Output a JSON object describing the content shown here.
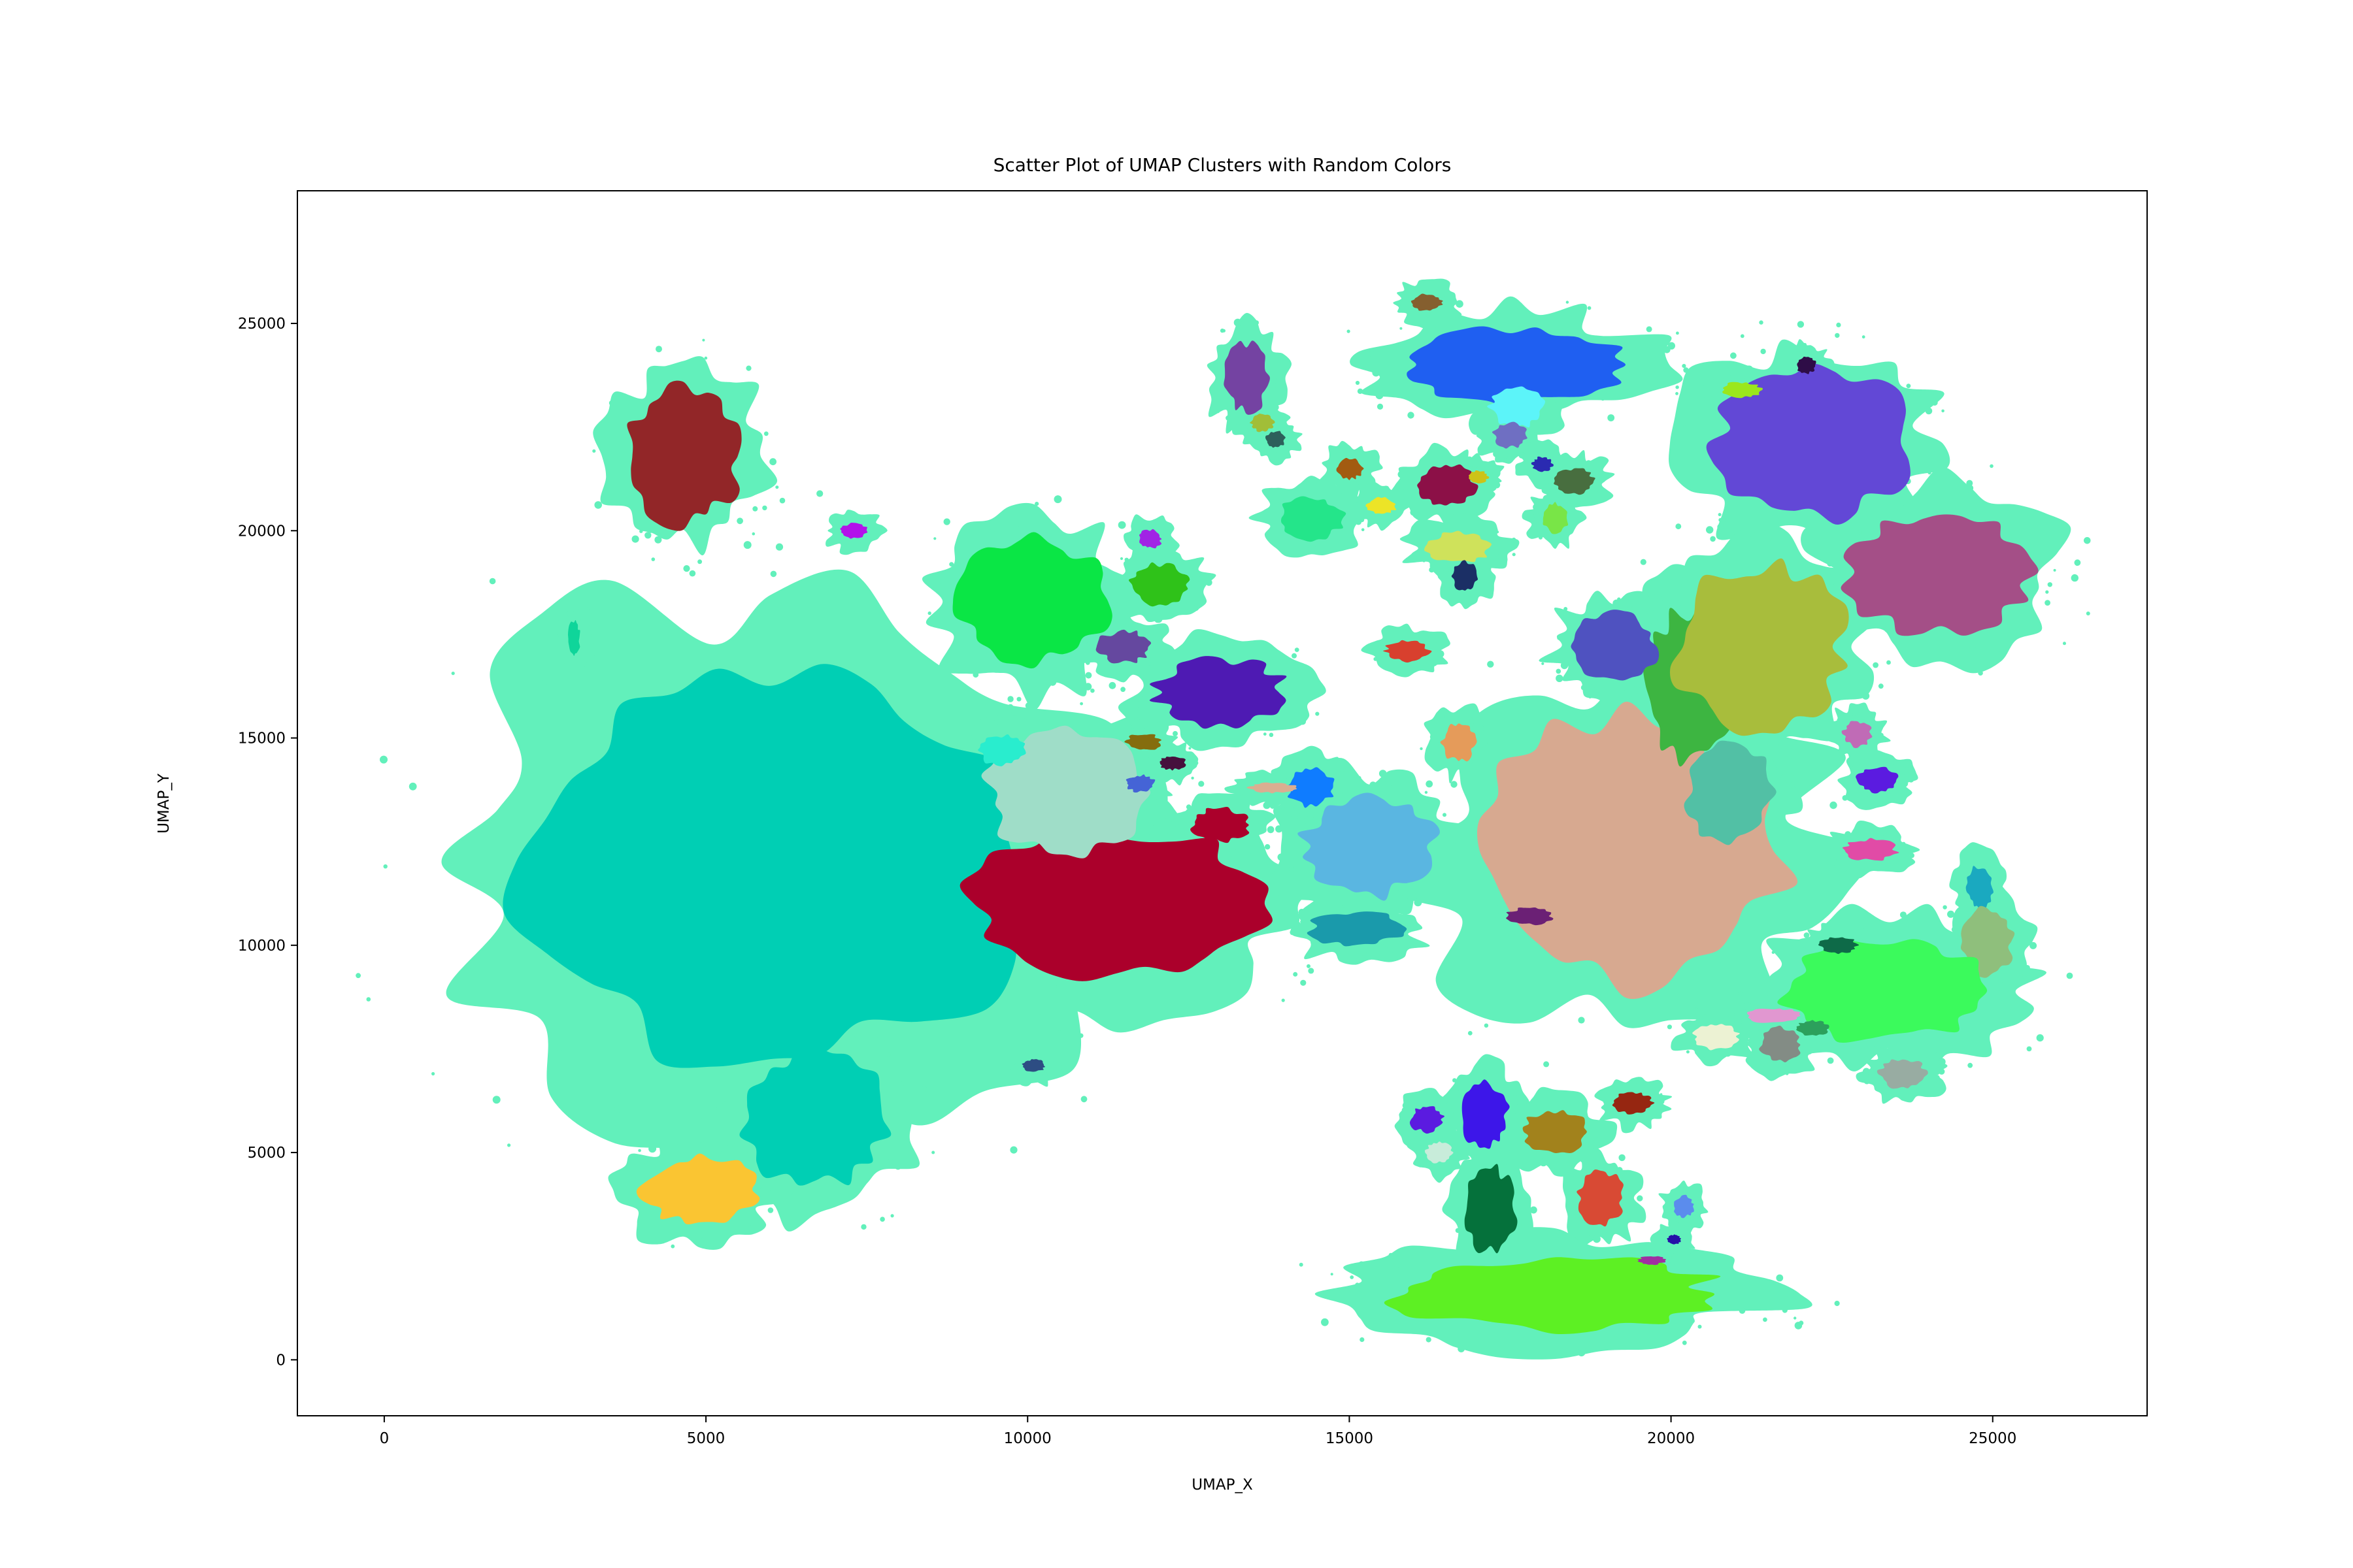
{
  "chart_data": {
    "type": "scatter",
    "title": "Scatter Plot of UMAP Clusters with Random Colors",
    "xlabel": "UMAP_X",
    "ylabel": "UMAP_Y",
    "xlim": [
      -1350,
      27400
    ],
    "ylim": [
      -1350,
      28200
    ],
    "xticks": [
      0,
      5000,
      10000,
      15000,
      20000,
      25000
    ],
    "yticks": [
      0,
      5000,
      10000,
      15000,
      20000,
      25000
    ],
    "grid": false,
    "legend": "none",
    "background_points_color": "#62f0bb",
    "clusters": [
      {
        "color": "#00cfb4",
        "center": [
          6000,
          12000
        ],
        "rx": 3800,
        "ry": 5000
      },
      {
        "color": "#00cfb4",
        "center": [
          6700,
          5800
        ],
        "rx": 1100,
        "ry": 1600
      },
      {
        "color": "#922628",
        "center": [
          4650,
          21800
        ],
        "rx": 850,
        "ry": 1600
      },
      {
        "color": "#fac532",
        "center": [
          4900,
          4100
        ],
        "rx": 850,
        "ry": 800
      },
      {
        "color": "#ab002b",
        "center": [
          11400,
          11000
        ],
        "rx": 2200,
        "ry": 1800
      },
      {
        "color": "#9fddc8",
        "center": [
          10600,
          13700
        ],
        "rx": 1200,
        "ry": 1500
      },
      {
        "color": "#0ae645",
        "center": [
          10100,
          18300
        ],
        "rx": 1100,
        "ry": 1500
      },
      {
        "color": "#2fc219",
        "center": [
          12050,
          18700
        ],
        "rx": 450,
        "ry": 480
      },
      {
        "color": "#65489f",
        "center": [
          11500,
          17200
        ],
        "rx": 400,
        "ry": 380
      },
      {
        "color": "#a123e5",
        "center": [
          11900,
          19800
        ],
        "rx": 180,
        "ry": 220
      },
      {
        "color": "#4e1ab3",
        "center": [
          13000,
          16100
        ],
        "rx": 1000,
        "ry": 800
      },
      {
        "color": "#856d0e",
        "center": [
          11800,
          14900
        ],
        "rx": 260,
        "ry": 200
      },
      {
        "color": "#4564d6",
        "center": [
          11750,
          13900
        ],
        "rx": 220,
        "ry": 200
      },
      {
        "color": "#46103d",
        "center": [
          12250,
          14400
        ],
        "rx": 200,
        "ry": 160
      },
      {
        "color": "#ab002b",
        "center": [
          13000,
          12900
        ],
        "rx": 450,
        "ry": 400
      },
      {
        "color": "#5ab6e1",
        "center": [
          15300,
          12400
        ],
        "rx": 1000,
        "ry": 1200
      },
      {
        "color": "#0f7cff",
        "center": [
          14400,
          13800
        ],
        "rx": 350,
        "ry": 450
      },
      {
        "color": "#1a9aab",
        "center": [
          15100,
          10400
        ],
        "rx": 700,
        "ry": 400
      },
      {
        "color": "#daae91",
        "center": [
          13800,
          13800
        ],
        "rx": 350,
        "ry": 120
      },
      {
        "color": "#29edce",
        "center": [
          9600,
          14700
        ],
        "rx": 350,
        "ry": 350
      },
      {
        "color": "#d8402e",
        "center": [
          15900,
          17100
        ],
        "rx": 330,
        "ry": 250
      },
      {
        "color": "#e59b5a",
        "center": [
          16700,
          14900
        ],
        "rx": 250,
        "ry": 450
      },
      {
        "color": "#d7a990",
        "center": [
          19300,
          12300
        ],
        "rx": 2400,
        "ry": 3200
      },
      {
        "color": "#52c0a5",
        "center": [
          20900,
          13700
        ],
        "rx": 650,
        "ry": 1200
      },
      {
        "color": "#3db541",
        "center": [
          20300,
          16300
        ],
        "rx": 650,
        "ry": 1800
      },
      {
        "color": "#a8bd3c",
        "center": [
          21400,
          17200
        ],
        "rx": 1300,
        "ry": 2000
      },
      {
        "color": "#4f52c0",
        "center": [
          19100,
          17200
        ],
        "rx": 650,
        "ry": 800
      },
      {
        "color": "#6248d6",
        "center": [
          22200,
          22100
        ],
        "rx": 1500,
        "ry": 1800
      },
      {
        "color": "#a44f87",
        "center": [
          24200,
          19000
        ],
        "rx": 1400,
        "ry": 1500
      },
      {
        "color": "#9be71c",
        "center": [
          21100,
          23400
        ],
        "rx": 300,
        "ry": 180
      },
      {
        "color": "#2e0d47",
        "center": [
          22100,
          24000
        ],
        "rx": 150,
        "ry": 200
      },
      {
        "color": "#1f5ff1",
        "center": [
          17500,
          24000
        ],
        "rx": 1700,
        "ry": 900
      },
      {
        "color": "#855f2f",
        "center": [
          16200,
          25500
        ],
        "rx": 250,
        "ry": 200
      },
      {
        "color": "#5cf4f9",
        "center": [
          17600,
          23000
        ],
        "rx": 400,
        "ry": 500
      },
      {
        "color": "#8c1047",
        "center": [
          16500,
          21100
        ],
        "rx": 450,
        "ry": 500
      },
      {
        "color": "#24e58a",
        "center": [
          14400,
          20300
        ],
        "rx": 500,
        "ry": 500
      },
      {
        "color": "#cfe25b",
        "center": [
          16700,
          19600
        ],
        "rx": 500,
        "ry": 350
      },
      {
        "color": "#7443a2",
        "center": [
          13400,
          23700
        ],
        "rx": 350,
        "ry": 800
      },
      {
        "color": "#a1be38",
        "center": [
          13650,
          22600
        ],
        "rx": 180,
        "ry": 200
      },
      {
        "color": "#2d605b",
        "center": [
          13850,
          22200
        ],
        "rx": 150,
        "ry": 200
      },
      {
        "color": "#a25b11",
        "center": [
          15000,
          21500
        ],
        "rx": 200,
        "ry": 250
      },
      {
        "color": "#ece427",
        "center": [
          15500,
          20600
        ],
        "rx": 220,
        "ry": 200
      },
      {
        "color": "#6f6fc2",
        "center": [
          17500,
          22300
        ],
        "rx": 250,
        "ry": 300
      },
      {
        "color": "#1b2f65",
        "center": [
          16800,
          18900
        ],
        "rx": 200,
        "ry": 350
      },
      {
        "color": "#79e547",
        "center": [
          18200,
          20300
        ],
        "rx": 200,
        "ry": 350
      },
      {
        "color": "#486e3f",
        "center": [
          18500,
          21200
        ],
        "rx": 300,
        "ry": 300
      },
      {
        "color": "#2a2ab1",
        "center": [
          18000,
          21600
        ],
        "rx": 150,
        "ry": 180
      },
      {
        "color": "#ccc318",
        "center": [
          17000,
          21300
        ],
        "rx": 150,
        "ry": 150
      },
      {
        "color": "#c06bb6",
        "center": [
          22900,
          15100
        ],
        "rx": 220,
        "ry": 300
      },
      {
        "color": "#5b1be0",
        "center": [
          23200,
          14000
        ],
        "rx": 300,
        "ry": 300
      },
      {
        "color": "#e14ba6",
        "center": [
          23100,
          12300
        ],
        "rx": 400,
        "ry": 250
      },
      {
        "color": "#1aa9c0",
        "center": [
          24800,
          11400
        ],
        "rx": 200,
        "ry": 500
      },
      {
        "color": "#8fbf7c",
        "center": [
          24900,
          10100
        ],
        "rx": 400,
        "ry": 800
      },
      {
        "color": "#3bfa5c",
        "center": [
          23400,
          8900
        ],
        "rx": 1600,
        "ry": 1200
      },
      {
        "color": "#0e6a48",
        "center": [
          22600,
          10000
        ],
        "rx": 280,
        "ry": 200
      },
      {
        "color": "#e197d0",
        "center": [
          21600,
          8300
        ],
        "rx": 400,
        "ry": 180
      },
      {
        "color": "#2ca05c",
        "center": [
          22200,
          8000
        ],
        "rx": 250,
        "ry": 180
      },
      {
        "color": "#838c85",
        "center": [
          21700,
          7600
        ],
        "rx": 300,
        "ry": 400
      },
      {
        "color": "#98aca2",
        "center": [
          23600,
          6900
        ],
        "rx": 350,
        "ry": 350
      },
      {
        "color": "#ecf2d3",
        "center": [
          20700,
          7800
        ],
        "rx": 350,
        "ry": 300
      },
      {
        "color": "#6b2075",
        "center": [
          17800,
          10700
        ],
        "rx": 350,
        "ry": 200
      },
      {
        "color": "#2d4d83",
        "center": [
          10100,
          7100
        ],
        "rx": 170,
        "ry": 150
      },
      {
        "color": "#b312ea",
        "center": [
          7300,
          20000
        ],
        "rx": 200,
        "ry": 180
      },
      {
        "color": "#0fd59a",
        "center": [
          2950,
          17400
        ],
        "rx": 90,
        "ry": 400
      },
      {
        "color": "#3d16e9",
        "center": [
          17100,
          5900
        ],
        "rx": 350,
        "ry": 750
      },
      {
        "color": "#5b1be0",
        "center": [
          16200,
          5800
        ],
        "rx": 250,
        "ry": 300
      },
      {
        "color": "#a2821c",
        "center": [
          18200,
          5500
        ],
        "rx": 500,
        "ry": 500
      },
      {
        "color": "#05713b",
        "center": [
          17200,
          3600
        ],
        "rx": 400,
        "ry": 1000
      },
      {
        "color": "#d84a34",
        "center": [
          18900,
          3900
        ],
        "rx": 350,
        "ry": 650
      },
      {
        "color": "#962611",
        "center": [
          19400,
          6200
        ],
        "rx": 300,
        "ry": 250
      },
      {
        "color": "#5df023",
        "center": [
          18200,
          1600
        ],
        "rx": 2500,
        "ry": 850
      },
      {
        "color": "#5b8ced",
        "center": [
          20200,
          3700
        ],
        "rx": 150,
        "ry": 250
      },
      {
        "color": "#260fa8",
        "center": [
          20050,
          2900
        ],
        "rx": 100,
        "ry": 120
      },
      {
        "color": "#a02fa2",
        "center": [
          19700,
          2400
        ],
        "rx": 200,
        "ry": 100
      },
      {
        "color": "#c8ecda",
        "center": [
          16400,
          5000
        ],
        "rx": 200,
        "ry": 250
      }
    ]
  }
}
